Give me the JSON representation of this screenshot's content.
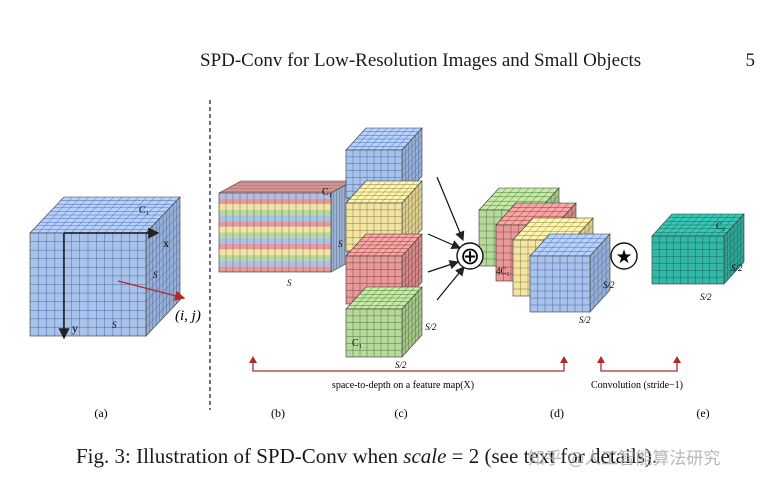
{
  "header": {
    "title": "SPD-Conv for Low-Resolution Images and Small Objects",
    "page_number": "5"
  },
  "figure": {
    "panel_a": {
      "dim_c1": "C₁",
      "axis_x": "x",
      "axis_y": "y",
      "side_s_right": "S",
      "side_s_bottom": "S",
      "point": "(i, j)"
    },
    "panel_b": {
      "dim_c1": "C₁",
      "side_s_left": "S",
      "side_s_bottom": "S"
    },
    "panel_c": {
      "dim_c1": "C₁",
      "side_right": "S/2",
      "side_bottom": "S/2"
    },
    "panel_d": {
      "dim_4c1": "4C₁",
      "side_right": "S/2",
      "side_bottom": "S/2"
    },
    "panel_e": {
      "dim_c2": "C₂",
      "side_right": "S/2",
      "side_bottom": "S/2"
    },
    "operators": {
      "concat": "⊕",
      "conv": "★"
    },
    "spd_label": "space-to-depth on a feature map(X)",
    "conv_label": "Convolution (stride−1)",
    "subfig_labels": [
      "(a)",
      "(b)",
      "(c)",
      "(d)",
      "(e)"
    ],
    "colors": {
      "blue": "#a9c2ea",
      "yellow": "#f2e5a3",
      "red": "#e79a9a",
      "green": "#b8d99a",
      "teal": "#33b7a6",
      "arrow_red": "#b02a2a"
    }
  },
  "caption": {
    "prefix": "Fig. 3: Illustration of SPD-Conv when ",
    "math_var": "scale",
    "suffix": " = 2 (see text for details)."
  },
  "watermark": "知乎 @人工智能算法研究"
}
